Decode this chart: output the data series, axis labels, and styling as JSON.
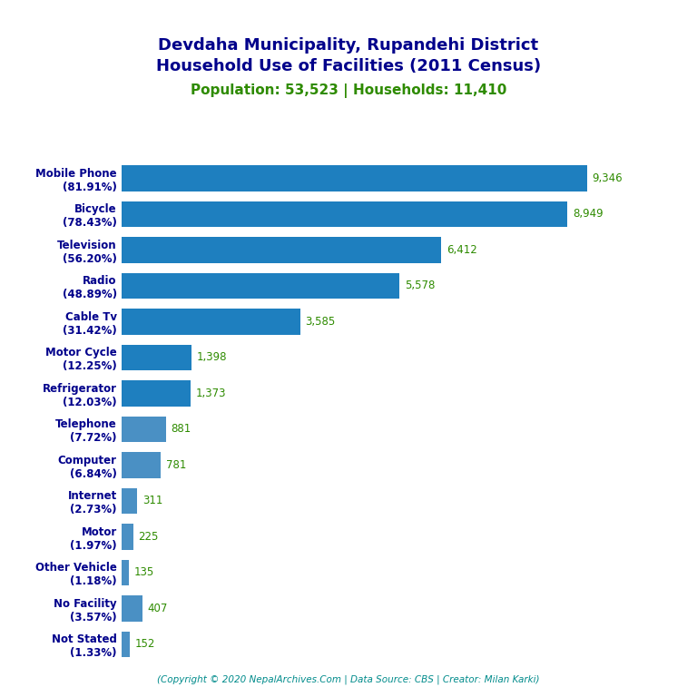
{
  "title_line1": "Devdaha Municipality, Rupandehi District",
  "title_line2": "Household Use of Facilities (2011 Census)",
  "subtitle": "Population: 53,523 | Households: 11,410",
  "subtitle_color": "#2E8B00",
  "title_color": "#00008B",
  "categories": [
    "Not Stated\n(1.33%)",
    "No Facility\n(3.57%)",
    "Other Vehicle\n(1.18%)",
    "Motor\n(1.97%)",
    "Internet\n(2.73%)",
    "Computer\n(6.84%)",
    "Telephone\n(7.72%)",
    "Refrigerator\n(12.03%)",
    "Motor Cycle\n(12.25%)",
    "Cable Tv\n(31.42%)",
    "Radio\n(48.89%)",
    "Television\n(56.20%)",
    "Bicycle\n(78.43%)",
    "Mobile Phone\n(81.91%)"
  ],
  "values": [
    152,
    407,
    135,
    225,
    311,
    781,
    881,
    1373,
    1398,
    3585,
    5578,
    6412,
    8949,
    9346
  ],
  "value_labels": [
    "152",
    "407",
    "135",
    "225",
    "311",
    "781",
    "881",
    "1,373",
    "1,398",
    "3,585",
    "5,578",
    "6,412",
    "8,949",
    "9,346"
  ],
  "bar_color_small": "#4A90C4",
  "bar_color_large": "#1E7FBF",
  "bar_color_threshold": 1000,
  "label_color": "#2E8B00",
  "axis_label_color": "#00008B",
  "copyright_text": "(Copyright © 2020 NepalArchives.Com | Data Source: CBS | Creator: Milan Karki)",
  "copyright_color": "#008B8B",
  "xlim": [
    0,
    10500
  ],
  "figsize": [
    7.68,
    7.68
  ],
  "dpi": 100,
  "background_color": "#FFFFFF"
}
